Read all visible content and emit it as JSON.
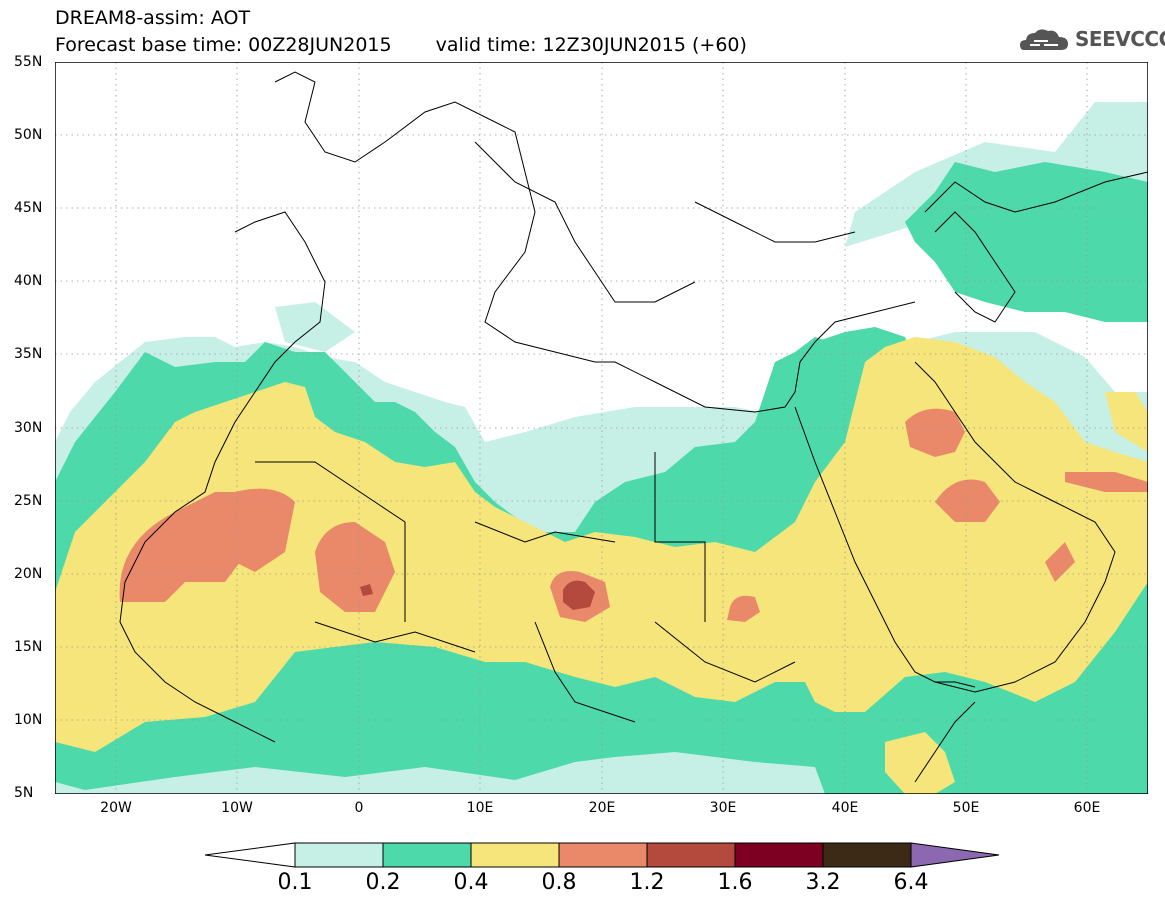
{
  "header": {
    "line1": "DREAM8-assim: AOT",
    "base_label": "Forecast base time: 00Z28JUN2015",
    "valid_label": "valid time: 12Z30JUN2015 (+60)"
  },
  "logo": {
    "icon": "cloud-icon",
    "text": "SEEVCCC"
  },
  "axes": {
    "lat_labels": [
      "55N",
      "50N",
      "45N",
      "40N",
      "35N",
      "30N",
      "25N",
      "20N",
      "15N",
      "10N",
      "5N"
    ],
    "lon_labels": [
      "20W",
      "10W",
      "0",
      "10E",
      "20E",
      "30E",
      "40E",
      "50E",
      "60E"
    ],
    "lat_range": [
      5,
      55
    ],
    "lon_range": [
      -25,
      65
    ]
  },
  "legend": {
    "levels": [
      "0.1",
      "0.2",
      "0.4",
      "0.8",
      "1.2",
      "1.6",
      "3.2",
      "6.4"
    ],
    "colors": [
      "#ffffff",
      "#c6f0e6",
      "#4dd9a9",
      "#f6e57a",
      "#e9896a",
      "#b4493d",
      "#7d0022",
      "#3c2a16",
      "#8b68b0"
    ]
  }
}
